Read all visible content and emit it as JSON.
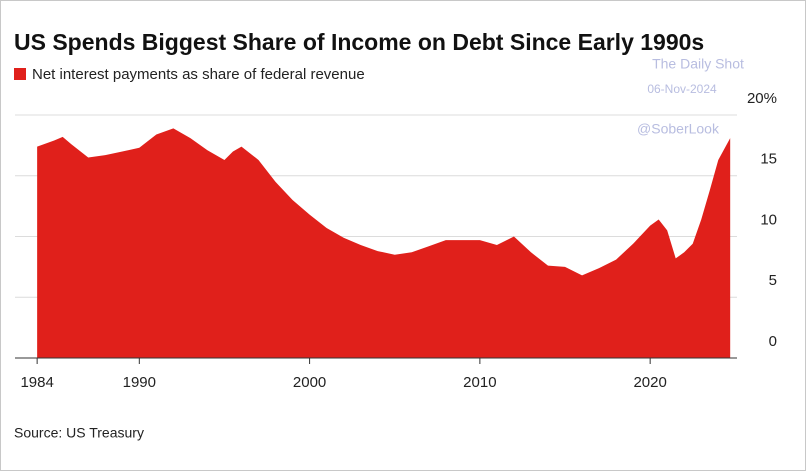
{
  "chart_data": {
    "type": "area",
    "title": "US Spends Biggest Share of Income on Debt Since Early 1990s",
    "source": "Source: US Treasury",
    "annotations": [
      "The Daily Shot",
      "06-Nov-2024",
      "@SoberLook"
    ],
    "x": [
      1984,
      1985,
      1985.5,
      1986,
      1987,
      1988,
      1989,
      1990,
      1991,
      1992,
      1993,
      1994,
      1995,
      1995.5,
      1996,
      1997,
      1998,
      1999,
      2000,
      2001,
      2002,
      2003,
      2004,
      2005,
      2006,
      2007,
      2008,
      2009,
      2010,
      2011,
      2012,
      2013,
      2014,
      2015,
      2016,
      2017,
      2018,
      2019,
      2020,
      2020.5,
      2021,
      2021.5,
      2022,
      2022.5,
      2023,
      2023.5,
      2024,
      2024.7
    ],
    "series": [
      {
        "name": "Net interest payments as share of federal revenue",
        "color": "#e0201b",
        "values": [
          17.4,
          17.9,
          18.2,
          17.6,
          16.5,
          16.7,
          17.0,
          17.3,
          18.4,
          18.9,
          18.1,
          17.1,
          16.3,
          17.0,
          17.4,
          16.3,
          14.5,
          13.0,
          11.8,
          10.7,
          9.9,
          9.3,
          8.8,
          8.5,
          8.7,
          9.2,
          9.7,
          9.7,
          9.7,
          9.3,
          10.0,
          8.7,
          7.6,
          7.5,
          6.8,
          7.4,
          8.1,
          9.4,
          10.9,
          11.4,
          10.5,
          8.2,
          8.7,
          9.4,
          11.4,
          13.8,
          16.3,
          18.1
        ]
      }
    ],
    "xlim": [
      1982.7,
      2025.1
    ],
    "ylim": [
      0,
      20
    ],
    "xticks": [
      1984,
      1990,
      2000,
      2010,
      2020
    ],
    "yticks": [
      0,
      5,
      10,
      15,
      {
        "value": 20,
        "label": "20%"
      }
    ],
    "grid": true
  }
}
